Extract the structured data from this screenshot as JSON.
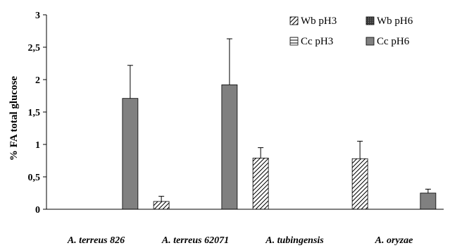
{
  "chart_data": {
    "type": "bar",
    "ylabel": "% FA total glucose",
    "ylim": [
      0,
      3
    ],
    "yticks": [
      "0",
      "0,5",
      "1",
      "1,5",
      "2",
      "2,5",
      "3"
    ],
    "categories": [
      "A. terreus 826",
      "A. terreus 62071",
      "A. tubingensis",
      "A. oryzae"
    ],
    "series": [
      {
        "name": "Wb pH3",
        "pattern": "diagonal-hatch",
        "values": [
          0,
          0.12,
          0.79,
          0.78
        ],
        "errors": [
          0,
          0.08,
          0.16,
          0.27
        ]
      },
      {
        "name": "Wb pH6",
        "pattern": "dotted-dark",
        "values": [
          0,
          0,
          0,
          0
        ],
        "errors": [
          0,
          0,
          0,
          0
        ]
      },
      {
        "name": "Cc pH3",
        "pattern": "horizontal-stripes",
        "values": [
          0,
          0,
          0,
          0
        ],
        "errors": [
          0,
          0,
          0,
          0
        ]
      },
      {
        "name": "Cc pH6",
        "pattern": "solid-gray",
        "values": [
          1.71,
          1.92,
          0,
          0.25
        ],
        "errors": [
          0.51,
          0.71,
          0,
          0.06
        ]
      }
    ],
    "legend_position": "top-right",
    "colors": {
      "bar_gray": "#808080",
      "axis": "#000000"
    }
  }
}
